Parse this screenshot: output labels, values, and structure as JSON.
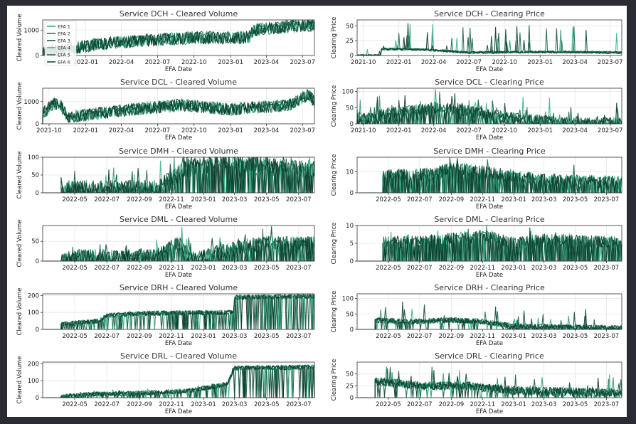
{
  "colors": {
    "background": "#2b2b33",
    "figure": "#ffffff",
    "series": [
      "#2f9a76",
      "#1c6b4d",
      "#0f4a36",
      "#3bb387",
      "#145c43",
      "#0a3a2b"
    ]
  },
  "chart_data": [
    {
      "type": "line",
      "title": "Service DCH - Cleared Volume",
      "xlabel": "EFA Date",
      "ylabel": "Cleared Volume",
      "date_range": [
        "2021-09-15",
        "2023-07-31"
      ],
      "x_ticks": [
        "2022-01",
        "2022-04",
        "2022-07",
        "2022-10",
        "2023-01",
        "2023-04",
        "2023-07"
      ],
      "ylim": [
        0,
        1400
      ],
      "y_ticks": [
        0,
        1000
      ],
      "grid": true,
      "legend": {
        "location": "top-left",
        "entries": [
          "EFA 1",
          "EFA 2",
          "EFA 3",
          "EFA 4",
          "EFA 5",
          "EFA 6"
        ]
      },
      "series_names": [
        "EFA 1",
        "EFA 2",
        "EFA 3",
        "EFA 4",
        "EFA 5",
        "EFA 6"
      ],
      "shape": {
        "start": "2021-09-15",
        "points": [
          [
            "2021-09-15",
            120
          ],
          [
            "2021-12-01",
            280
          ],
          [
            "2022-02-01",
            450
          ],
          [
            "2022-06-01",
            600
          ],
          [
            "2022-10-01",
            700
          ],
          [
            "2023-02-15",
            700
          ],
          [
            "2023-03-01",
            1000
          ],
          [
            "2023-06-01",
            1150
          ],
          [
            "2023-07-31",
            1200
          ]
        ],
        "noise": 250,
        "spike_prob": 0,
        "spike_max": 0,
        "zero_prob": 0
      }
    },
    {
      "type": "line",
      "title": "Service DCH - Clearing Price",
      "xlabel": "EFA Date",
      "ylabel": "Clearing Price",
      "date_range": [
        "2021-09-15",
        "2023-07-31"
      ],
      "x_ticks": [
        "2021-10",
        "2022-01",
        "2022-04",
        "2022-07",
        "2022-10",
        "2023-01",
        "2023-04",
        "2023-07"
      ],
      "ylim": [
        0,
        60
      ],
      "y_ticks": [
        0,
        25,
        50
      ],
      "grid": true,
      "series_names": [
        "EFA 1",
        "EFA 2",
        "EFA 3",
        "EFA 4",
        "EFA 5",
        "EFA 6"
      ],
      "shape": {
        "start": "2021-09-15",
        "points": [
          [
            "2021-09-15",
            0
          ],
          [
            "2021-11-15",
            0
          ],
          [
            "2021-11-16",
            11
          ],
          [
            "2022-03-01",
            10
          ],
          [
            "2022-07-01",
            5
          ],
          [
            "2023-01-01",
            6
          ],
          [
            "2023-07-31",
            5
          ]
        ],
        "noise": 2,
        "spike_prob": 0.03,
        "spike_max": 45,
        "zero_prob": 0
      }
    },
    {
      "type": "line",
      "title": "Service DCL - Cleared Volume",
      "xlabel": "EFA Date",
      "ylabel": "Cleared Volume",
      "date_range": [
        "2021-09-15",
        "2023-07-31"
      ],
      "x_ticks": [
        "2021-10",
        "2022-01",
        "2022-04",
        "2022-07",
        "2022-10",
        "2023-01",
        "2023-04",
        "2023-07"
      ],
      "ylim": [
        0,
        1600
      ],
      "y_ticks": [
        0,
        1000
      ],
      "grid": true,
      "series_names": [
        "EFA 1",
        "EFA 2",
        "EFA 3",
        "EFA 4",
        "EFA 5",
        "EFA 6"
      ],
      "shape": {
        "start": "2021-09-15",
        "points": [
          [
            "2021-09-15",
            500
          ],
          [
            "2021-10-15",
            900
          ],
          [
            "2021-11-01",
            800
          ],
          [
            "2021-11-15",
            300
          ],
          [
            "2022-01-01",
            400
          ],
          [
            "2022-05-01",
            650
          ],
          [
            "2022-09-01",
            850
          ],
          [
            "2023-01-01",
            650
          ],
          [
            "2023-06-01",
            850
          ],
          [
            "2023-07-15",
            1300
          ],
          [
            "2023-07-31",
            1000
          ]
        ],
        "noise": 280,
        "spike_prob": 0,
        "spike_max": 0,
        "zero_prob": 0
      }
    },
    {
      "type": "line",
      "title": "Service DCL - Clearing Price",
      "xlabel": "EFA Date",
      "ylabel": "Clearing Price",
      "date_range": [
        "2021-09-15",
        "2023-07-31"
      ],
      "x_ticks": [
        "2021-10",
        "2022-01",
        "2022-04",
        "2022-07",
        "2022-10",
        "2023-01",
        "2023-04",
        "2023-07"
      ],
      "ylim": [
        0,
        110
      ],
      "y_ticks": [
        0,
        50,
        100
      ],
      "grid": true,
      "series_names": [
        "EFA 1",
        "EFA 2",
        "EFA 3",
        "EFA 4",
        "EFA 5",
        "EFA 6"
      ],
      "shape": {
        "start": "2021-09-15",
        "points": [
          [
            "2021-09-15",
            18
          ],
          [
            "2021-11-01",
            18
          ],
          [
            "2021-11-15",
            30
          ],
          [
            "2022-03-15",
            45
          ],
          [
            "2022-04-01",
            50
          ],
          [
            "2022-06-01",
            45
          ],
          [
            "2022-10-01",
            20
          ],
          [
            "2023-01-01",
            10
          ],
          [
            "2023-04-01",
            2
          ],
          [
            "2023-07-31",
            2
          ]
        ],
        "noise": 18,
        "spike_prob": 0.04,
        "spike_max": 60,
        "zero_prob": 0.25
      }
    },
    {
      "type": "line",
      "title": "Service DMH - Cleared Volume",
      "xlabel": "EFA Date",
      "ylabel": "Cleared Volume",
      "date_range": [
        "2022-03-01",
        "2023-07-31"
      ],
      "x_ticks": [
        "2022-05",
        "2022-07",
        "2022-09",
        "2022-11",
        "2023-01",
        "2023-03",
        "2023-05",
        "2023-07"
      ],
      "ylim": [
        0,
        100
      ],
      "y_ticks": [
        0,
        50,
        100
      ],
      "grid": true,
      "series_names": [
        "EFA 1",
        "EFA 2",
        "EFA 3",
        "EFA 4",
        "EFA 5",
        "EFA 6"
      ],
      "shape": {
        "start": "2022-04-05",
        "points": [
          [
            "2022-04-05",
            0
          ],
          [
            "2022-05-01",
            10
          ],
          [
            "2022-10-01",
            10
          ],
          [
            "2022-11-01",
            40
          ],
          [
            "2022-12-01",
            70
          ],
          [
            "2023-02-01",
            85
          ],
          [
            "2023-07-31",
            65
          ]
        ],
        "noise": 25,
        "spike_prob": 0.04,
        "spike_max": 60,
        "zero_prob": 0.3
      }
    },
    {
      "type": "line",
      "title": "Service DMH - Clearing Price",
      "xlabel": "EFA Date",
      "ylabel": "Clearing Price",
      "date_range": [
        "2022-03-01",
        "2023-07-31"
      ],
      "x_ticks": [
        "2022-05",
        "2022-07",
        "2022-09",
        "2022-11",
        "2023-01",
        "2023-03",
        "2023-05",
        "2023-07"
      ],
      "ylim": [
        0,
        17
      ],
      "y_ticks": [
        0,
        10
      ],
      "grid": true,
      "series_names": [
        "EFA 1",
        "EFA 2",
        "EFA 3",
        "EFA 4",
        "EFA 5",
        "EFA 6"
      ],
      "shape": {
        "start": "2022-04-20",
        "points": [
          [
            "2022-04-20",
            8
          ],
          [
            "2022-08-01",
            9
          ],
          [
            "2022-09-01",
            12
          ],
          [
            "2022-12-01",
            9
          ],
          [
            "2023-03-01",
            6
          ],
          [
            "2023-07-31",
            5
          ]
        ],
        "noise": 3,
        "spike_prob": 0.02,
        "spike_max": 6,
        "zero_prob": 0.35
      }
    },
    {
      "type": "line",
      "title": "Service DML - Cleared Volume",
      "xlabel": "EFA Date",
      "ylabel": "Cleared Volume",
      "date_range": [
        "2022-03-01",
        "2023-07-31"
      ],
      "x_ticks": [
        "2022-05",
        "2022-07",
        "2022-09",
        "2022-11",
        "2023-01",
        "2023-03",
        "2023-05",
        "2023-07"
      ],
      "ylim": [
        0,
        90
      ],
      "y_ticks": [
        0,
        50
      ],
      "grid": true,
      "series_names": [
        "EFA 1",
        "EFA 2",
        "EFA 3",
        "EFA 4",
        "EFA 5",
        "EFA 6"
      ],
      "shape": {
        "start": "2022-04-05",
        "points": [
          [
            "2022-04-05",
            0
          ],
          [
            "2022-05-01",
            12
          ],
          [
            "2022-10-01",
            12
          ],
          [
            "2022-11-15",
            45
          ],
          [
            "2022-12-15",
            5
          ],
          [
            "2023-03-01",
            35
          ],
          [
            "2023-05-01",
            45
          ],
          [
            "2023-07-31",
            45
          ]
        ],
        "noise": 18,
        "spike_prob": 0.03,
        "spike_max": 40,
        "zero_prob": 0.35
      }
    },
    {
      "type": "line",
      "title": "Service DML - Clearing Price",
      "xlabel": "EFA Date",
      "ylabel": "Clearing Price",
      "date_range": [
        "2022-03-01",
        "2023-07-31"
      ],
      "x_ticks": [
        "2022-05",
        "2022-07",
        "2022-09",
        "2022-11",
        "2023-01",
        "2023-03",
        "2023-05",
        "2023-07"
      ],
      "ylim": [
        0,
        10
      ],
      "y_ticks": [
        0,
        5,
        10
      ],
      "grid": true,
      "series_names": [
        "EFA 1",
        "EFA 2",
        "EFA 3",
        "EFA 4",
        "EFA 5",
        "EFA 6"
      ],
      "shape": {
        "start": "2022-04-20",
        "points": [
          [
            "2022-04-20",
            5
          ],
          [
            "2022-08-15",
            6
          ],
          [
            "2022-11-01",
            7
          ],
          [
            "2023-01-15",
            5
          ],
          [
            "2023-03-01",
            6
          ],
          [
            "2023-07-31",
            5
          ]
        ],
        "noise": 1.8,
        "spike_prob": 0.02,
        "spike_max": 3,
        "zero_prob": 0.4
      }
    },
    {
      "type": "line",
      "title": "Service DRH - Cleared Volume",
      "xlabel": "EFA Date",
      "ylabel": "Cleared Volume",
      "date_range": [
        "2022-03-01",
        "2023-07-31"
      ],
      "x_ticks": [
        "2022-05",
        "2022-07",
        "2022-09",
        "2022-11",
        "2023-01",
        "2023-03",
        "2023-05",
        "2023-07"
      ],
      "ylim": [
        0,
        210
      ],
      "y_ticks": [
        0,
        100,
        200
      ],
      "grid": true,
      "series_names": [
        "EFA 1",
        "EFA 2",
        "EFA 3",
        "EFA 4",
        "EFA 5",
        "EFA 6"
      ],
      "shape": {
        "start": "2022-04-05",
        "points": [
          [
            "2022-04-05",
            30
          ],
          [
            "2022-06-15",
            50
          ],
          [
            "2022-07-01",
            80
          ],
          [
            "2022-09-01",
            95
          ],
          [
            "2023-02-28",
            100
          ],
          [
            "2023-03-01",
            190
          ],
          [
            "2023-07-31",
            195
          ]
        ],
        "noise": 14,
        "spike_prob": 0,
        "spike_max": 0,
        "zero_prob": 0.12
      }
    },
    {
      "type": "line",
      "title": "Service DRH - Clearing Price",
      "xlabel": "EFA Date",
      "ylabel": "Clearing Price",
      "date_range": [
        "2022-03-01",
        "2023-07-31"
      ],
      "x_ticks": [
        "2022-05",
        "2022-07",
        "2022-09",
        "2022-11",
        "2023-01",
        "2023-03",
        "2023-05",
        "2023-07"
      ],
      "ylim": [
        0,
        115
      ],
      "y_ticks": [
        0,
        50,
        100
      ],
      "grid": true,
      "series_names": [
        "EFA 1",
        "EFA 2",
        "EFA 3",
        "EFA 4",
        "EFA 5",
        "EFA 6"
      ],
      "shape": {
        "start": "2022-04-05",
        "points": [
          [
            "2022-04-05",
            30
          ],
          [
            "2022-06-01",
            25
          ],
          [
            "2022-09-01",
            30
          ],
          [
            "2022-11-01",
            25
          ],
          [
            "2023-01-01",
            10
          ],
          [
            "2023-07-31",
            4
          ]
        ],
        "noise": 9,
        "spike_prob": 0.025,
        "spike_max": 60,
        "zero_prob": 0.05
      }
    },
    {
      "type": "line",
      "title": "Service DRL - Cleared Volume",
      "xlabel": "EFA Date",
      "ylabel": "Cleared Volume",
      "date_range": [
        "2022-03-01",
        "2023-07-31"
      ],
      "x_ticks": [
        "2022-05",
        "2022-07",
        "2022-09",
        "2022-11",
        "2023-01",
        "2023-03",
        "2023-05",
        "2023-07"
      ],
      "ylim": [
        0,
        210
      ],
      "y_ticks": [
        0,
        100,
        200
      ],
      "grid": true,
      "series_names": [
        "EFA 1",
        "EFA 2",
        "EFA 3",
        "EFA 4",
        "EFA 5",
        "EFA 6"
      ],
      "shape": {
        "start": "2022-04-05",
        "points": [
          [
            "2022-04-05",
            5
          ],
          [
            "2022-06-01",
            20
          ],
          [
            "2022-10-01",
            30
          ],
          [
            "2022-12-01",
            40
          ],
          [
            "2023-02-15",
            80
          ],
          [
            "2023-03-01",
            175
          ],
          [
            "2023-07-31",
            180
          ]
        ],
        "noise": 14,
        "spike_prob": 0.02,
        "spike_max": 30,
        "zero_prob": 0.1
      }
    },
    {
      "type": "line",
      "title": "Service DRL - Clearing Price",
      "xlabel": "EFA Date",
      "ylabel": "Clearing Price",
      "date_range": [
        "2022-03-01",
        "2023-07-31"
      ],
      "x_ticks": [
        "2022-05",
        "2022-07",
        "2022-09",
        "2022-11",
        "2023-01",
        "2023-03",
        "2023-05",
        "2023-07"
      ],
      "ylim": [
        0,
        75
      ],
      "y_ticks": [
        0,
        25,
        50
      ],
      "grid": true,
      "series_names": [
        "EFA 1",
        "EFA 2",
        "EFA 3",
        "EFA 4",
        "EFA 5",
        "EFA 6"
      ],
      "shape": {
        "start": "2022-04-05",
        "points": [
          [
            "2022-04-05",
            35
          ],
          [
            "2022-07-01",
            25
          ],
          [
            "2022-10-01",
            25
          ],
          [
            "2023-01-01",
            15
          ],
          [
            "2023-07-31",
            10
          ]
        ],
        "noise": 9,
        "spike_prob": 0.03,
        "spike_max": 35,
        "zero_prob": 0.05
      }
    }
  ]
}
